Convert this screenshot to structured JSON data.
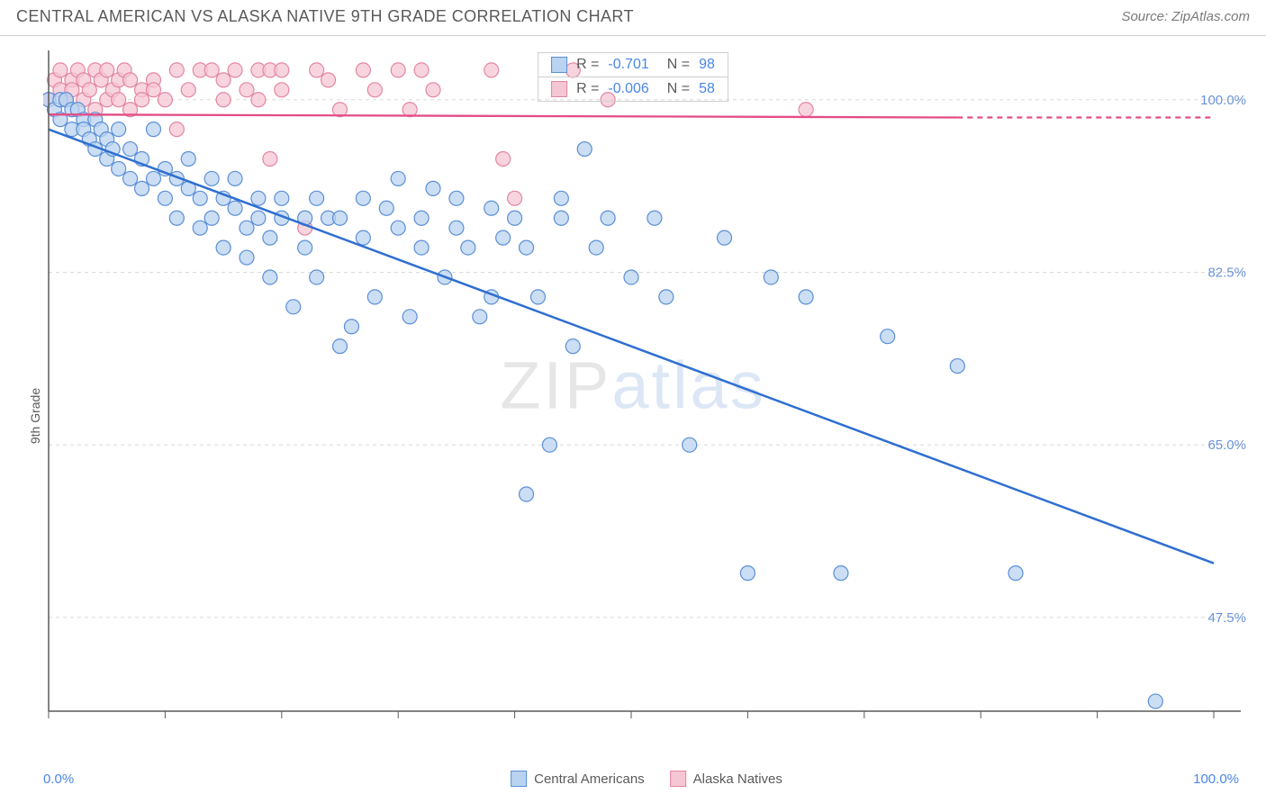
{
  "header": {
    "title": "CENTRAL AMERICAN VS ALASKA NATIVE 9TH GRADE CORRELATION CHART",
    "source": "Source: ZipAtlas.com"
  },
  "chart": {
    "type": "scatter",
    "y_label": "9th Grade",
    "x_min_label": "0.0%",
    "x_max_label": "100.0%",
    "x_domain": [
      0,
      100
    ],
    "y_domain": [
      38,
      105
    ],
    "y_ticks": [
      {
        "v": 100.0,
        "label": "100.0%"
      },
      {
        "v": 82.5,
        "label": "82.5%"
      },
      {
        "v": 65.0,
        "label": "65.0%"
      },
      {
        "v": 47.5,
        "label": "47.5%"
      }
    ],
    "x_ticks": [
      0,
      10,
      20,
      30,
      40,
      50,
      60,
      70,
      80,
      90,
      100
    ],
    "grid_color": "#d8d8d8",
    "axis_color": "#5a5a5a",
    "tick_label_color": "#6b93d6",
    "background_color": "#ffffff",
    "marker_radius": 8,
    "marker_stroke_width": 1.2,
    "series": {
      "central_americans": {
        "label": "Central Americans",
        "fill": "#b9d3f0",
        "stroke": "#5b8fd6",
        "line_color": "#2f6fd0",
        "line_width": 2.5,
        "trend": {
          "x1": 0,
          "y1": 97,
          "x2": 100,
          "y2": 53
        },
        "R": "-0.701",
        "N": "98",
        "points": [
          [
            0,
            100
          ],
          [
            0.5,
            99
          ],
          [
            1,
            100
          ],
          [
            1,
            98
          ],
          [
            1.5,
            100
          ],
          [
            2,
            99
          ],
          [
            2,
            97
          ],
          [
            2.5,
            99
          ],
          [
            3,
            98
          ],
          [
            3,
            97
          ],
          [
            3.5,
            96
          ],
          [
            4,
            98
          ],
          [
            4,
            95
          ],
          [
            4.5,
            97
          ],
          [
            5,
            96
          ],
          [
            5,
            94
          ],
          [
            5.5,
            95
          ],
          [
            6,
            97
          ],
          [
            6,
            93
          ],
          [
            7,
            95
          ],
          [
            7,
            92
          ],
          [
            8,
            94
          ],
          [
            8,
            91
          ],
          [
            9,
            92
          ],
          [
            9,
            97
          ],
          [
            10,
            90
          ],
          [
            10,
            93
          ],
          [
            11,
            92
          ],
          [
            11,
            88
          ],
          [
            12,
            91
          ],
          [
            12,
            94
          ],
          [
            13,
            90
          ],
          [
            13,
            87
          ],
          [
            14,
            92
          ],
          [
            14,
            88
          ],
          [
            15,
            90
          ],
          [
            15,
            85
          ],
          [
            16,
            89
          ],
          [
            16,
            92
          ],
          [
            17,
            87
          ],
          [
            17,
            84
          ],
          [
            18,
            88
          ],
          [
            18,
            90
          ],
          [
            19,
            82
          ],
          [
            19,
            86
          ],
          [
            20,
            88
          ],
          [
            20,
            90
          ],
          [
            21,
            79
          ],
          [
            22,
            85
          ],
          [
            22,
            88
          ],
          [
            23,
            90
          ],
          [
            23,
            82
          ],
          [
            24,
            88
          ],
          [
            25,
            75
          ],
          [
            25,
            88
          ],
          [
            26,
            77
          ],
          [
            27,
            86
          ],
          [
            27,
            90
          ],
          [
            28,
            80
          ],
          [
            29,
            89
          ],
          [
            30,
            87
          ],
          [
            30,
            92
          ],
          [
            31,
            78
          ],
          [
            32,
            85
          ],
          [
            32,
            88
          ],
          [
            33,
            91
          ],
          [
            34,
            82
          ],
          [
            35,
            90
          ],
          [
            35,
            87
          ],
          [
            36,
            85
          ],
          [
            37,
            78
          ],
          [
            38,
            89
          ],
          [
            38,
            80
          ],
          [
            39,
            86
          ],
          [
            40,
            88
          ],
          [
            41,
            60
          ],
          [
            41,
            85
          ],
          [
            42,
            80
          ],
          [
            43,
            65
          ],
          [
            44,
            90
          ],
          [
            44,
            88
          ],
          [
            45,
            75
          ],
          [
            46,
            95
          ],
          [
            47,
            85
          ],
          [
            48,
            88
          ],
          [
            50,
            82
          ],
          [
            52,
            88
          ],
          [
            53,
            80
          ],
          [
            55,
            65
          ],
          [
            58,
            86
          ],
          [
            60,
            52
          ],
          [
            62,
            82
          ],
          [
            65,
            80
          ],
          [
            68,
            52
          ],
          [
            72,
            76
          ],
          [
            78,
            73
          ],
          [
            83,
            52
          ],
          [
            95,
            39
          ]
        ]
      },
      "alaska_natives": {
        "label": "Alaska Natives",
        "fill": "#f5c6d3",
        "stroke": "#e386a3",
        "line_color": "#e34d86",
        "line_width": 2.3,
        "trend": {
          "x1": 0,
          "y1": 98.5,
          "x2": 78,
          "y2": 98.2
        },
        "trend_dashed_x2": 100,
        "R": "-0.006",
        "N": "58",
        "points": [
          [
            0,
            100
          ],
          [
            0.5,
            102
          ],
          [
            1,
            101
          ],
          [
            1,
            103
          ],
          [
            1.5,
            100
          ],
          [
            2,
            102
          ],
          [
            2,
            101
          ],
          [
            2.5,
            103
          ],
          [
            3,
            100
          ],
          [
            3,
            102
          ],
          [
            3.5,
            101
          ],
          [
            4,
            103
          ],
          [
            4,
            99
          ],
          [
            4.5,
            102
          ],
          [
            5,
            100
          ],
          [
            5,
            103
          ],
          [
            5.5,
            101
          ],
          [
            6,
            102
          ],
          [
            6,
            100
          ],
          [
            6.5,
            103
          ],
          [
            7,
            99
          ],
          [
            7,
            102
          ],
          [
            8,
            101
          ],
          [
            8,
            100
          ],
          [
            9,
            102
          ],
          [
            9,
            101
          ],
          [
            10,
            100
          ],
          [
            11,
            103
          ],
          [
            11,
            97
          ],
          [
            12,
            101
          ],
          [
            13,
            103
          ],
          [
            14,
            103
          ],
          [
            15,
            100
          ],
          [
            15,
            102
          ],
          [
            16,
            103
          ],
          [
            17,
            101
          ],
          [
            18,
            103
          ],
          [
            18,
            100
          ],
          [
            19,
            103
          ],
          [
            19,
            94
          ],
          [
            20,
            103
          ],
          [
            20,
            101
          ],
          [
            22,
            87
          ],
          [
            23,
            103
          ],
          [
            24,
            102
          ],
          [
            25,
            99
          ],
          [
            27,
            103
          ],
          [
            28,
            101
          ],
          [
            30,
            103
          ],
          [
            31,
            99
          ],
          [
            32,
            103
          ],
          [
            33,
            101
          ],
          [
            38,
            103
          ],
          [
            39,
            94
          ],
          [
            40,
            90
          ],
          [
            45,
            103
          ],
          [
            48,
            100
          ],
          [
            65,
            99
          ]
        ]
      }
    },
    "legend_box": {
      "rows": [
        {
          "swatch_fill": "#b9d3f0",
          "swatch_stroke": "#5b8fd6"
        },
        {
          "swatch_fill": "#f5c6d3",
          "swatch_stroke": "#e386a3"
        }
      ]
    },
    "watermark": {
      "prefix": "ZIP",
      "suffix": "atlas"
    }
  }
}
